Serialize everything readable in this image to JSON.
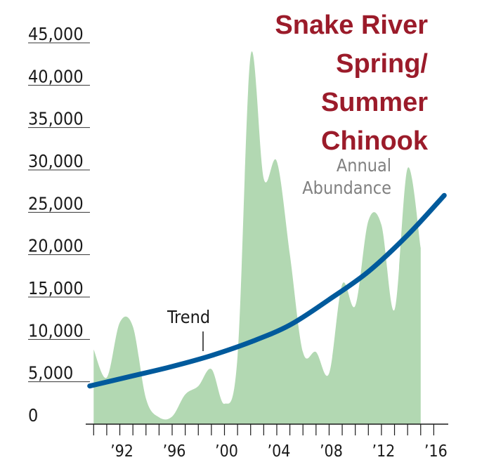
{
  "chart_data": {
    "type": "area",
    "title": [
      "Snake River",
      "Spring/",
      "Summer",
      "Chinook"
    ],
    "xlabel": "",
    "ylabel": "",
    "ylim": [
      0,
      45000
    ],
    "xlim": [
      1989.5,
      2017
    ],
    "y_ticks": [
      0,
      5000,
      10000,
      15000,
      20000,
      25000,
      30000,
      35000,
      40000,
      45000
    ],
    "y_tick_labels": [
      "0",
      "5,000",
      "10,000",
      "15,000",
      "20,000",
      "25,000",
      "30,000",
      "35,000",
      "40,000",
      "45,000"
    ],
    "x_tick_labels": [
      {
        "year": 1992,
        "label": "’92"
      },
      {
        "year": 1996,
        "label": "’96"
      },
      {
        "year": 2000,
        "label": "’00"
      },
      {
        "year": 2004,
        "label": "’04"
      },
      {
        "year": 2008,
        "label": "’08"
      },
      {
        "year": 2012,
        "label": "’12"
      },
      {
        "year": 2016,
        "label": "’16"
      }
    ],
    "series": [
      {
        "name": "Annual Abundance",
        "x": [
          1990,
          1991,
          1992,
          1993,
          1994,
          1995,
          1996,
          1997,
          1998,
          1999,
          2000,
          2001,
          2002,
          2003,
          2004,
          2005,
          2006,
          2007,
          2008,
          2009,
          2010,
          2011,
          2012,
          2013,
          2014,
          2015
        ],
        "values": [
          8800,
          5500,
          12000,
          11500,
          3000,
          800,
          900,
          3500,
          4500,
          6500,
          2400,
          8000,
          43500,
          29000,
          31000,
          20000,
          8500,
          8500,
          6000,
          16500,
          14000,
          24000,
          23500,
          13500,
          30200,
          20800
        ]
      },
      {
        "name": "Trend",
        "x": [
          1989.7,
          1993,
          1996,
          1999,
          2002,
          2005,
          2008,
          2011,
          2014,
          2016.8
        ],
        "values": [
          4500,
          5700,
          6800,
          8100,
          9700,
          11700,
          14700,
          18000,
          22300,
          27000
        ]
      }
    ],
    "colors": {
      "area": "#b2d8b2",
      "trend": "#005a9c",
      "title": "#9b1b2a",
      "annual_label": "#808080",
      "axis": "#1a1a1a",
      "grid": "#333333"
    },
    "grid": false
  }
}
